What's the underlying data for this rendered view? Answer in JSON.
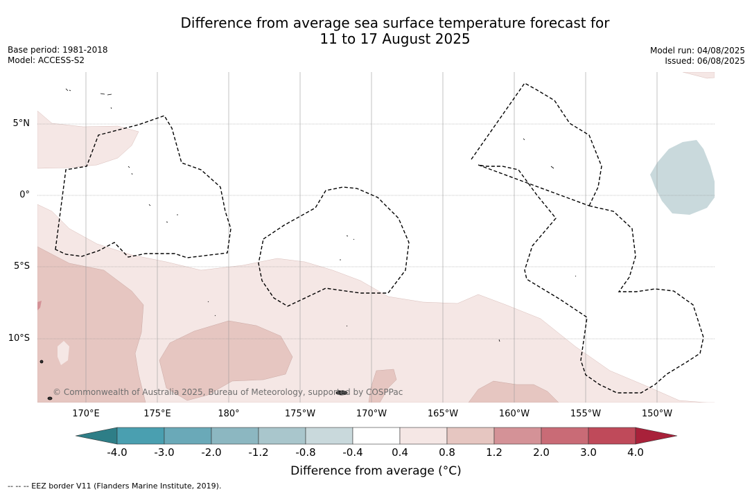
{
  "title_line1": "Difference from average sea surface temperature forecast for",
  "title_line2": "11 to 17 August 2025",
  "base_period": "Base period: 1981-2018",
  "model": "Model: ACCESS-S2",
  "model_run": "Model run: 04/08/2025",
  "issued": "Issued: 06/08/2025",
  "copyright": "© Commonwealth of Australia 2025, Bureau of Meteorology, supported by COSPPac",
  "lon_labels": [
    "170°E",
    "175°E",
    "180°",
    "175°W",
    "170°W",
    "165°W",
    "160°W",
    "155°W",
    "150°W"
  ],
  "lat_labels": [
    "5°N",
    "0°",
    "5°S",
    "10°S"
  ],
  "colorbar": {
    "title": "Difference from average (°C)",
    "ticks": [
      "-4.0",
      "-3.0",
      "-2.0",
      "-1.2",
      "-0.8",
      "-0.4",
      "0.4",
      "0.8",
      "1.2",
      "2.0",
      "3.0",
      "4.0"
    ],
    "colors": [
      "#4a9fb0",
      "#6aa9b8",
      "#8cb7c1",
      "#a9c6cc",
      "#c9d9dc",
      "#ffffff",
      "#f5e7e5",
      "#e6c6c1",
      "#d49297",
      "#c96b76",
      "#bf4a5a"
    ],
    "low_extend_color": "#2e7e87",
    "high_extend_color": "#a8213a"
  },
  "footnote": "--  --  -- EEZ border V11 (Flanders Marine Institute, 2019)."
}
